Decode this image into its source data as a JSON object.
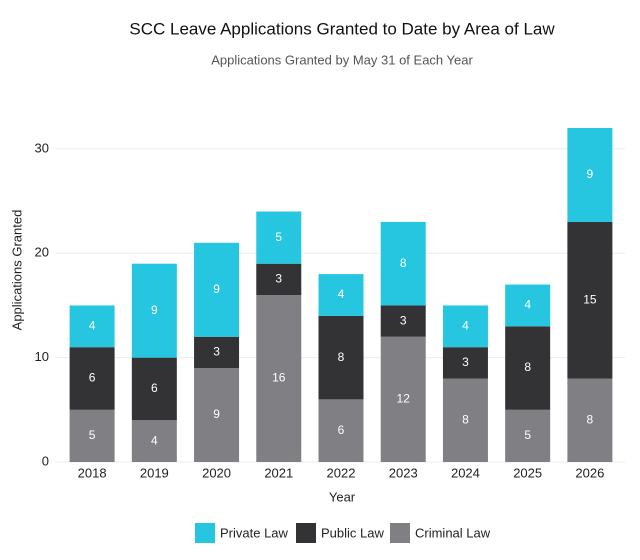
{
  "chart_data": {
    "type": "stacked-bar",
    "title": "SCC Leave Applications Granted to Date by Area of Law",
    "subtitle": "Applications Granted by May 31 of Each Year",
    "x_label": "Year",
    "y_label": "Applications Granted",
    "categories": [
      "2018",
      "2019",
      "2020",
      "2021",
      "2022",
      "2023",
      "2024",
      "2025",
      "2026"
    ],
    "series": [
      {
        "name": "Criminal Law",
        "color": "#808084",
        "values": [
          5,
          4,
          9,
          16,
          6,
          12,
          8,
          5,
          8
        ]
      },
      {
        "name": "Public Law",
        "color": "#333335",
        "values": [
          6,
          6,
          3,
          3,
          8,
          3,
          3,
          8,
          15
        ]
      },
      {
        "name": "Private Law",
        "color": "#26c6e0",
        "values": [
          4,
          9,
          9,
          5,
          4,
          8,
          4,
          4,
          9
        ]
      }
    ],
    "ylim": [
      0,
      36.6
    ],
    "yticks": [
      0,
      10,
      20,
      30
    ],
    "grid": true,
    "legend": "bottom"
  }
}
